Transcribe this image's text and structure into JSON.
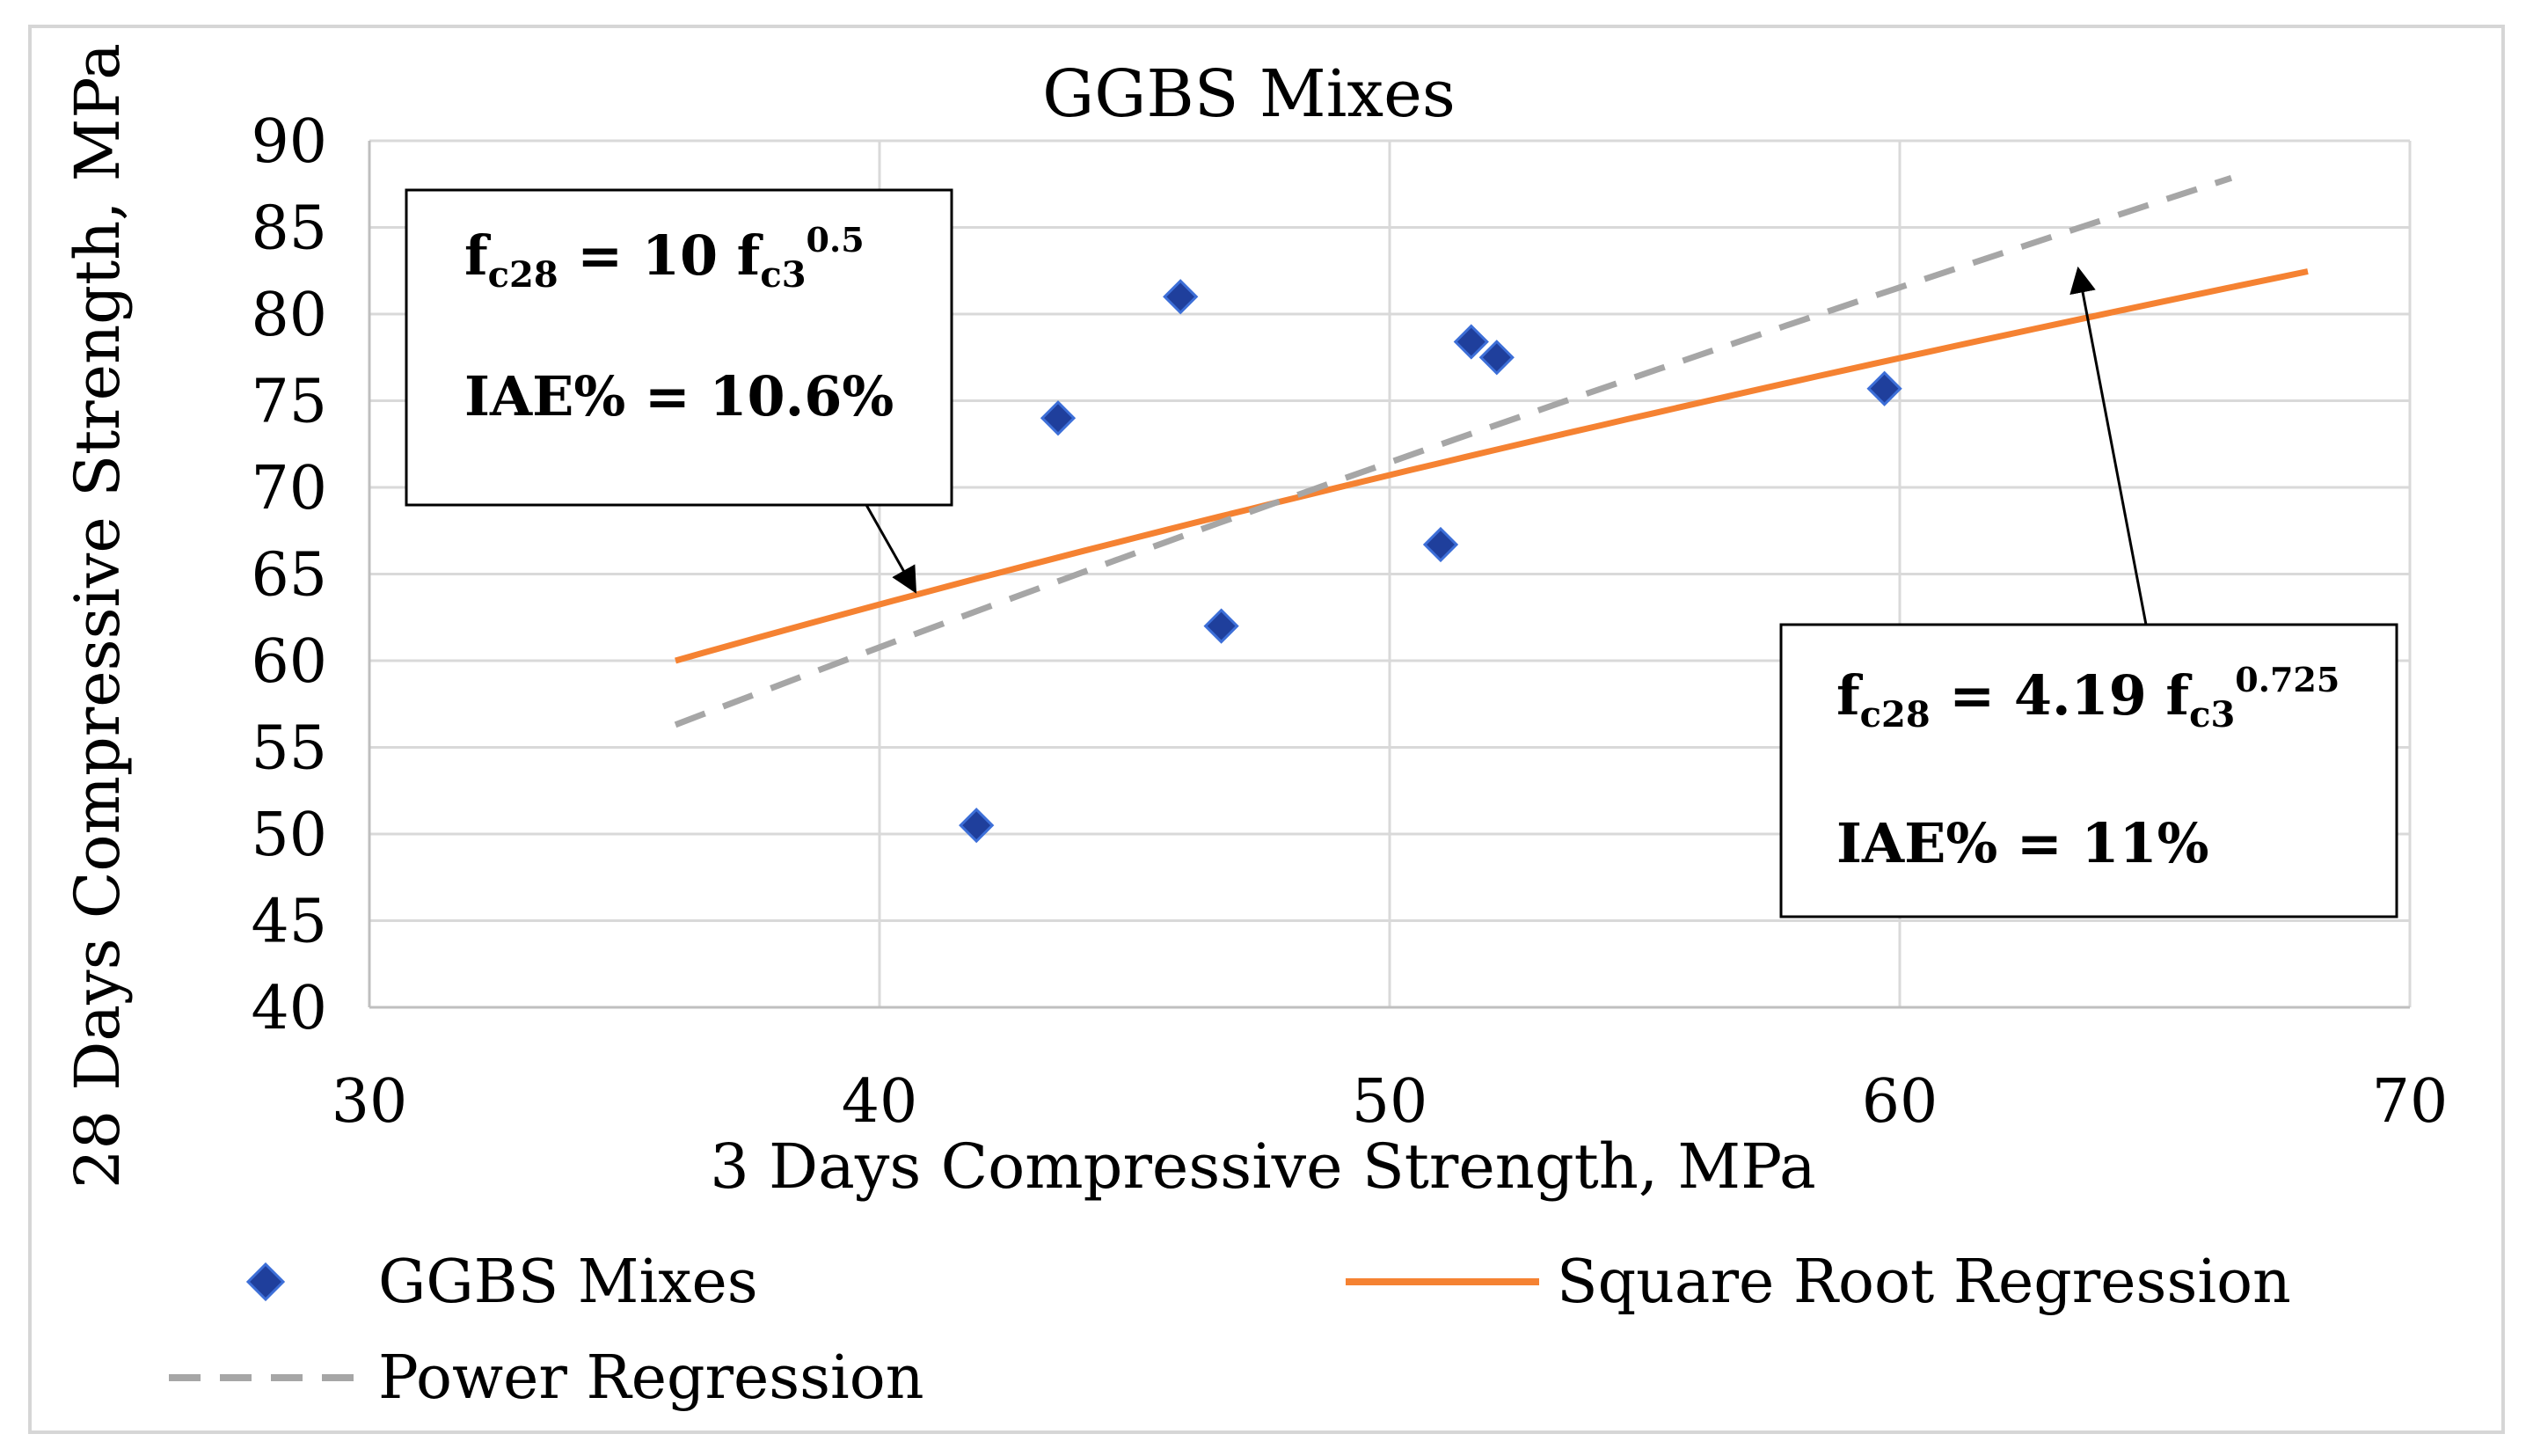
{
  "chart_data": {
    "type": "scatter",
    "title": "GGBS Mixes",
    "xlabel": "3 Days Compressive Strength, MPa",
    "ylabel": "28 Days Compressive Strength, MPa",
    "xlim": [
      30,
      70
    ],
    "ylim": [
      40,
      90
    ],
    "x_ticks": [
      30,
      40,
      50,
      60,
      70
    ],
    "y_ticks": [
      40,
      45,
      50,
      55,
      60,
      65,
      70,
      75,
      80,
      85,
      90
    ],
    "grid": true,
    "series": [
      {
        "name": "GGBS Mixes",
        "kind": "scatter",
        "marker": "diamond",
        "color": "#1F3F9C",
        "points": [
          {
            "x": 41.9,
            "y": 50.5
          },
          {
            "x": 43.5,
            "y": 74.0
          },
          {
            "x": 45.9,
            "y": 81.0
          },
          {
            "x": 46.7,
            "y": 62.0
          },
          {
            "x": 51.0,
            "y": 66.7
          },
          {
            "x": 51.6,
            "y": 78.4
          },
          {
            "x": 52.1,
            "y": 77.5
          },
          {
            "x": 59.7,
            "y": 75.7
          }
        ]
      },
      {
        "name": "Square Root Regression",
        "kind": "line",
        "equation": "fc28 = 10 fc3^0.5",
        "coef": 10,
        "exponent": 0.5,
        "x_range": [
          36,
          68
        ],
        "color": "#F58232"
      },
      {
        "name": "Power Regression",
        "kind": "dashed-line",
        "equation": "fc28 = 4.19 fc3^0.725",
        "coef": 4.19,
        "exponent": 0.725,
        "x_range": [
          36,
          66.5
        ],
        "color": "#A6A6A6"
      }
    ],
    "legend": {
      "placement": "bottom",
      "items": [
        "GGBS Mixes",
        "Square Root Regression",
        "Power Regression"
      ]
    },
    "annotations": [
      {
        "name": "square-root",
        "eq_main": "f",
        "eq_sub": "c28",
        "eq_mid": " = 10 f",
        "eq_sub2": "c3",
        "eq_sup": "0.5",
        "iae": "IAE% = 10.6%",
        "arrow_to": {
          "x": 40.7,
          "y": 64.0
        },
        "placement": "top-left"
      },
      {
        "name": "power",
        "eq_main": "f",
        "eq_sub": "c28",
        "eq_mid": " = 4.19 f",
        "eq_sub2": "c3",
        "eq_sup": "0.725",
        "iae": "IAE% = 11%",
        "arrow_to": {
          "x": 63.5,
          "y": 82.6
        },
        "placement": "bottom-right"
      }
    ]
  }
}
